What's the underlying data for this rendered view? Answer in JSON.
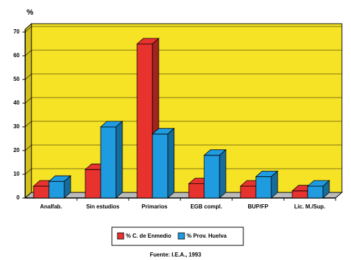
{
  "chart_data": {
    "type": "bar3d",
    "y_label": "%",
    "categories": [
      "Analfab.",
      "Sin estudios",
      "Primarios",
      "EGB compl.",
      "BUP/FP",
      "Lic. M./Sup."
    ],
    "series": [
      {
        "name": "% C. de Enmedio",
        "color": "#e8322e",
        "values": [
          5,
          12,
          65,
          6,
          5,
          3
        ]
      },
      {
        "name": "% Prov. Huelva",
        "color": "#1f9ce0",
        "values": [
          7,
          30,
          27,
          18,
          9,
          5
        ]
      }
    ],
    "ylim": [
      0,
      70
    ],
    "yticks": [
      0,
      10,
      20,
      30,
      40,
      50,
      60,
      70
    ],
    "wall_color": "#f7e326",
    "source": "Fuente: I.E.A., 1993"
  }
}
